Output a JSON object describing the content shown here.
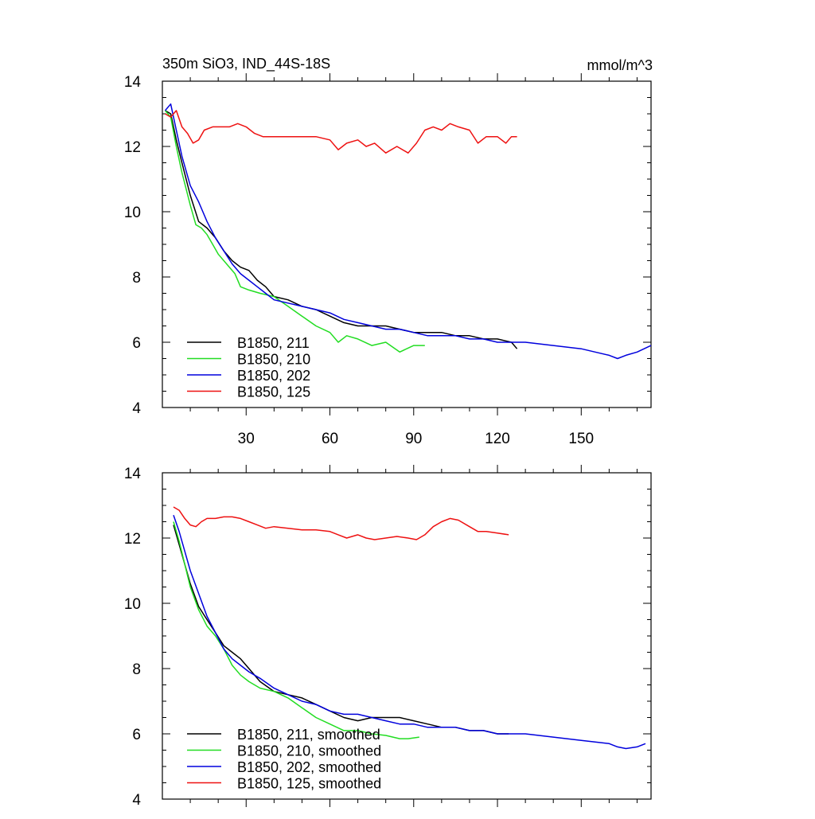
{
  "chart_data": [
    {
      "type": "line",
      "title": "350m SiO3, IND_44S-18S",
      "units": "mmol/m^3",
      "xlim": [
        0,
        175
      ],
      "ylim": [
        4,
        14
      ],
      "x_ticks": [
        "30",
        "60",
        "90",
        "120",
        "150"
      ],
      "y_ticks": [
        "4",
        "6",
        "8",
        "10",
        "12",
        "14"
      ],
      "legend_position": "bottom-left",
      "series": [
        {
          "name": "B1850, 211",
          "color": "#000000",
          "x": [
            1,
            3,
            5,
            7,
            10,
            13,
            16,
            19,
            22,
            25,
            28,
            31,
            34,
            37,
            40,
            45,
            50,
            55,
            60,
            65,
            70,
            75,
            80,
            85,
            90,
            95,
            100,
            105,
            110,
            115,
            120,
            125,
            127
          ],
          "y": [
            13.1,
            13.0,
            12.2,
            11.5,
            10.5,
            9.7,
            9.5,
            9.2,
            8.8,
            8.5,
            8.3,
            8.2,
            7.9,
            7.7,
            7.4,
            7.3,
            7.1,
            7.0,
            6.8,
            6.6,
            6.5,
            6.5,
            6.5,
            6.4,
            6.3,
            6.3,
            6.3,
            6.2,
            6.2,
            6.1,
            6.1,
            6.0,
            5.8
          ]
        },
        {
          "name": "B1850, 210",
          "color": "#22dd22",
          "x": [
            1,
            3,
            5,
            7,
            10,
            12,
            14,
            16,
            18,
            20,
            23,
            26,
            28,
            31,
            35,
            40,
            45,
            50,
            55,
            60,
            63,
            66,
            70,
            75,
            80,
            85,
            90,
            94
          ],
          "y": [
            13.1,
            12.9,
            12.0,
            11.2,
            10.2,
            9.6,
            9.5,
            9.3,
            9.0,
            8.7,
            8.4,
            8.1,
            7.7,
            7.6,
            7.5,
            7.4,
            7.1,
            6.8,
            6.5,
            6.3,
            6.0,
            6.2,
            6.1,
            5.9,
            6.0,
            5.7,
            5.9,
            5.9
          ]
        },
        {
          "name": "B1850, 202",
          "color": "#0000dd",
          "x": [
            1,
            3,
            5,
            7,
            10,
            13,
            16,
            19,
            22,
            25,
            28,
            31,
            34,
            37,
            40,
            45,
            50,
            55,
            60,
            65,
            70,
            75,
            80,
            85,
            90,
            95,
            100,
            105,
            110,
            115,
            120,
            130,
            140,
            150,
            155,
            160,
            163,
            166,
            170,
            175
          ],
          "y": [
            13.1,
            13.3,
            12.5,
            11.7,
            10.8,
            10.3,
            9.7,
            9.2,
            8.8,
            8.4,
            8.1,
            7.9,
            7.7,
            7.5,
            7.3,
            7.2,
            7.1,
            7.0,
            6.9,
            6.7,
            6.6,
            6.5,
            6.4,
            6.4,
            6.3,
            6.2,
            6.2,
            6.2,
            6.1,
            6.1,
            6.0,
            6.0,
            5.9,
            5.8,
            5.7,
            5.6,
            5.5,
            5.6,
            5.7,
            5.9
          ]
        },
        {
          "name": "B1850, 125",
          "color": "#ee1111",
          "x": [
            1,
            3,
            5,
            7,
            9,
            11,
            13,
            15,
            18,
            21,
            24,
            27,
            30,
            33,
            36,
            40,
            45,
            50,
            55,
            60,
            63,
            66,
            70,
            73,
            76,
            80,
            84,
            88,
            91,
            94,
            97,
            100,
            103,
            106,
            110,
            113,
            116,
            120,
            123,
            125,
            127
          ],
          "y": [
            13.0,
            12.9,
            13.1,
            12.6,
            12.4,
            12.1,
            12.2,
            12.5,
            12.6,
            12.6,
            12.6,
            12.7,
            12.6,
            12.4,
            12.3,
            12.3,
            12.3,
            12.3,
            12.3,
            12.2,
            11.9,
            12.1,
            12.2,
            12.0,
            12.1,
            11.8,
            12.0,
            11.8,
            12.1,
            12.5,
            12.6,
            12.5,
            12.7,
            12.6,
            12.5,
            12.1,
            12.3,
            12.3,
            12.1,
            12.3,
            12.3
          ]
        }
      ]
    },
    {
      "type": "line",
      "xlim": [
        0,
        175
      ],
      "ylim": [
        4,
        14
      ],
      "y_ticks": [
        "4",
        "6",
        "8",
        "10",
        "12",
        "14"
      ],
      "legend_position": "bottom-left",
      "series": [
        {
          "name": "B1850, 211, smoothed",
          "color": "#000000",
          "x": [
            4,
            6,
            8,
            10,
            13,
            16,
            19,
            22,
            25,
            28,
            31,
            35,
            40,
            45,
            50,
            55,
            60,
            65,
            70,
            75,
            80,
            85,
            90,
            95,
            100,
            105,
            110,
            115,
            120,
            124
          ],
          "y": [
            12.4,
            11.8,
            11.2,
            10.6,
            9.9,
            9.5,
            9.1,
            8.7,
            8.5,
            8.3,
            8.0,
            7.6,
            7.3,
            7.2,
            7.1,
            6.9,
            6.7,
            6.5,
            6.4,
            6.5,
            6.5,
            6.5,
            6.4,
            6.3,
            6.2,
            6.2,
            6.1,
            6.1,
            6.0,
            6.0
          ]
        },
        {
          "name": "B1850, 210, smoothed",
          "color": "#22dd22",
          "x": [
            4,
            6,
            8,
            10,
            13,
            16,
            19,
            22,
            25,
            28,
            31,
            35,
            40,
            45,
            50,
            55,
            60,
            65,
            70,
            75,
            80,
            85,
            88,
            92
          ],
          "y": [
            12.5,
            11.9,
            11.2,
            10.5,
            9.8,
            9.3,
            9.0,
            8.6,
            8.1,
            7.8,
            7.6,
            7.4,
            7.3,
            7.1,
            6.8,
            6.5,
            6.3,
            6.1,
            6.1,
            6.0,
            5.95,
            5.85,
            5.85,
            5.9
          ]
        },
        {
          "name": "B1850, 202, smoothed",
          "color": "#0000dd",
          "x": [
            4,
            6,
            8,
            10,
            13,
            16,
            19,
            22,
            25,
            28,
            31,
            35,
            40,
            45,
            50,
            55,
            60,
            65,
            70,
            75,
            80,
            85,
            90,
            95,
            100,
            105,
            110,
            115,
            120,
            130,
            140,
            150,
            155,
            160,
            163,
            166,
            170,
            173
          ],
          "y": [
            12.7,
            12.2,
            11.6,
            11.0,
            10.3,
            9.6,
            9.1,
            8.6,
            8.3,
            8.1,
            7.9,
            7.7,
            7.4,
            7.2,
            7.0,
            6.9,
            6.7,
            6.6,
            6.6,
            6.5,
            6.4,
            6.3,
            6.3,
            6.2,
            6.2,
            6.2,
            6.1,
            6.1,
            6.0,
            6.0,
            5.9,
            5.8,
            5.75,
            5.7,
            5.6,
            5.55,
            5.6,
            5.7
          ]
        },
        {
          "name": "B1850, 125, smoothed",
          "color": "#ee1111",
          "x": [
            4,
            6,
            8,
            10,
            12,
            14,
            16,
            19,
            22,
            25,
            28,
            31,
            34,
            37,
            40,
            45,
            50,
            55,
            60,
            63,
            66,
            70,
            73,
            76,
            80,
            84,
            88,
            91,
            94,
            97,
            100,
            103,
            106,
            110,
            113,
            116,
            120,
            124
          ],
          "y": [
            12.95,
            12.85,
            12.6,
            12.4,
            12.35,
            12.5,
            12.6,
            12.6,
            12.65,
            12.65,
            12.6,
            12.5,
            12.4,
            12.3,
            12.35,
            12.3,
            12.25,
            12.25,
            12.2,
            12.1,
            12.0,
            12.1,
            12.0,
            11.95,
            12.0,
            12.05,
            12.0,
            11.95,
            12.1,
            12.35,
            12.5,
            12.6,
            12.55,
            12.35,
            12.2,
            12.2,
            12.15,
            12.1
          ]
        }
      ]
    }
  ]
}
